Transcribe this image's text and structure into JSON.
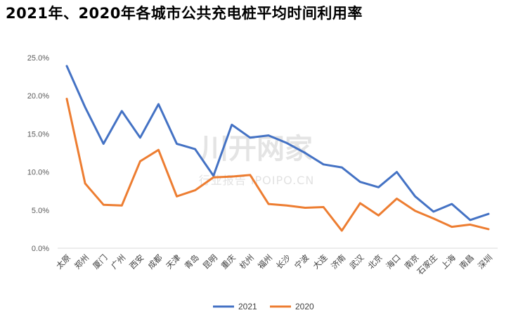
{
  "chart_data": {
    "type": "line",
    "title": "2021年、2020年各城市公共充电桩平均时间利用率",
    "categories": [
      "太原",
      "郑州",
      "厦门",
      "广州",
      "西安",
      "成都",
      "天津",
      "青岛",
      "昆明",
      "重庆",
      "杭州",
      "福州",
      "长沙",
      "宁波",
      "大连",
      "济南",
      "武汉",
      "北京",
      "海口",
      "南京",
      "石家庄",
      "上海",
      "南昌",
      "深圳"
    ],
    "series": [
      {
        "name": "2021",
        "color": "#4472C4",
        "values": [
          23.9,
          18.5,
          13.7,
          18.0,
          14.5,
          18.9,
          13.7,
          13.0,
          9.5,
          16.2,
          14.5,
          14.8,
          13.8,
          12.5,
          11.0,
          10.6,
          8.7,
          8.0,
          10.0,
          6.8,
          4.8,
          5.8,
          3.7,
          4.5
        ]
      },
      {
        "name": "2020",
        "color": "#ED7D31",
        "values": [
          19.6,
          8.5,
          5.7,
          5.6,
          11.4,
          12.9,
          6.8,
          7.6,
          9.3,
          9.4,
          9.6,
          5.8,
          5.6,
          5.3,
          5.4,
          2.3,
          5.9,
          4.3,
          6.5,
          4.9,
          3.9,
          2.8,
          3.1,
          2.5
        ]
      }
    ],
    "y_ticks": [
      "0.0%",
      "5.0%",
      "10.0%",
      "15.0%",
      "20.0%",
      "25.0%"
    ],
    "ylim": [
      0,
      25
    ],
    "grid": false,
    "legend_position": "bottom-center"
  },
  "watermark": {
    "main": "川开网家",
    "sub": "行业报告 IPOIPO.CN"
  }
}
